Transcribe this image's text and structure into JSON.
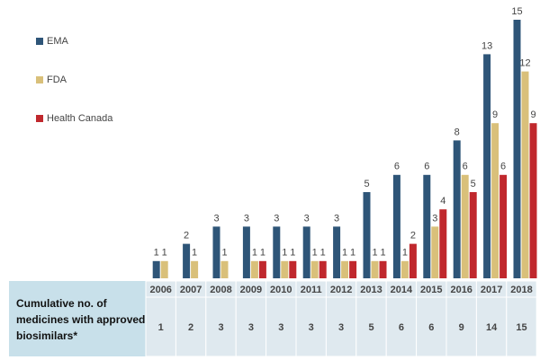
{
  "chart_data": {
    "type": "bar",
    "categories": [
      "2006",
      "2007",
      "2008",
      "2009",
      "2010",
      "2011",
      "2012",
      "2013",
      "2014",
      "2015",
      "2016",
      "2017",
      "2018"
    ],
    "series": [
      {
        "name": "EMA",
        "color": "#2e5578",
        "values": [
          1,
          2,
          3,
          3,
          3,
          3,
          3,
          5,
          6,
          6,
          8,
          13,
          15
        ]
      },
      {
        "name": "FDA",
        "color": "#d9c07a",
        "values": [
          1,
          1,
          1,
          1,
          1,
          1,
          1,
          1,
          1,
          3,
          6,
          9,
          12
        ]
      },
      {
        "name": "Health Canada",
        "color": "#c0282d",
        "values": [
          null,
          null,
          null,
          1,
          1,
          1,
          1,
          1,
          2,
          4,
          5,
          6,
          9
        ]
      }
    ],
    "ylim": [
      0,
      15
    ],
    "table": {
      "row_label": "Cumulative no. of medicines with approved biosimilars*",
      "values": [
        1,
        2,
        3,
        3,
        3,
        3,
        3,
        5,
        6,
        6,
        9,
        14,
        15
      ]
    }
  }
}
